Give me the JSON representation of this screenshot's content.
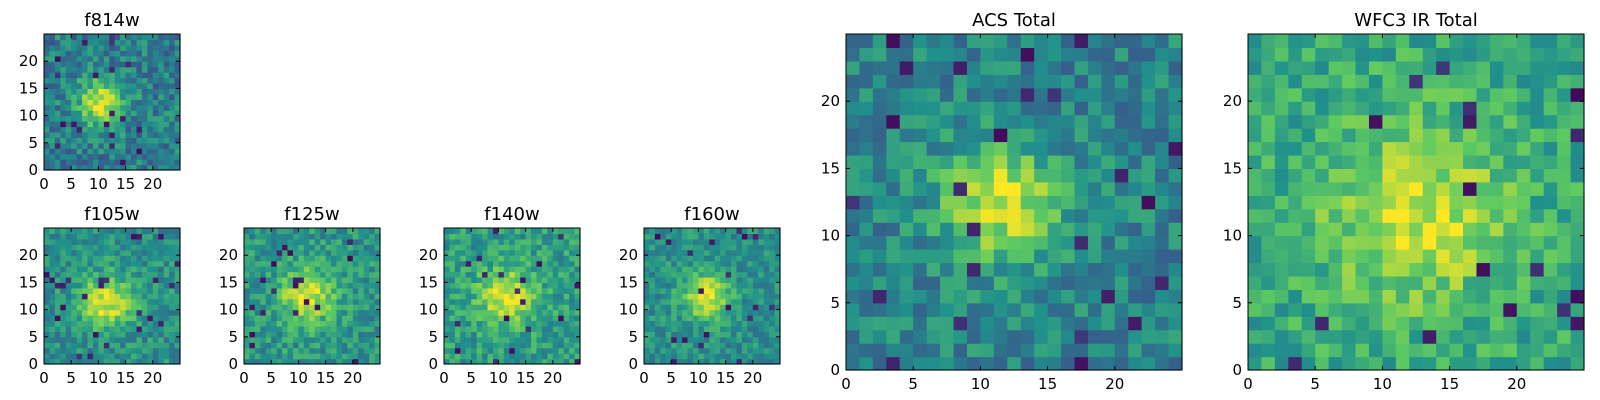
{
  "colormap": [
    "#440154",
    "#3b528b",
    "#21918c",
    "#5ec962",
    "#fde725"
  ],
  "chart_data": [
    {
      "type": "heatmap",
      "title": "f814w",
      "xlim": [
        0,
        25
      ],
      "ylim": [
        0,
        25
      ],
      "xticks": [
        0,
        5,
        10,
        15,
        20
      ],
      "yticks": [
        0,
        5,
        10,
        15,
        20
      ],
      "center": [
        10,
        12
      ],
      "peak": 0.88,
      "radius": 3.0,
      "background": 0.42,
      "noise": 0.17,
      "seed": 11
    },
    {
      "type": "heatmap",
      "title": "f105w",
      "xlim": [
        0,
        25
      ],
      "ylim": [
        0,
        25
      ],
      "xticks": [
        0,
        5,
        10,
        15,
        20
      ],
      "yticks": [
        0,
        5,
        10,
        15,
        20
      ],
      "center": [
        11,
        11
      ],
      "peak": 0.92,
      "radius": 3.4,
      "background": 0.5,
      "noise": 0.14,
      "seed": 23
    },
    {
      "type": "heatmap",
      "title": "f125w",
      "xlim": [
        0,
        25
      ],
      "ylim": [
        0,
        25
      ],
      "xticks": [
        0,
        5,
        10,
        15,
        20
      ],
      "yticks": [
        0,
        5,
        10,
        15,
        20
      ],
      "center": [
        11,
        12
      ],
      "peak": 0.88,
      "radius": 3.6,
      "background": 0.52,
      "noise": 0.15,
      "seed": 37
    },
    {
      "type": "heatmap",
      "title": "f140w",
      "xlim": [
        0,
        25
      ],
      "ylim": [
        0,
        25
      ],
      "xticks": [
        0,
        5,
        10,
        15,
        20
      ],
      "yticks": [
        0,
        5,
        10,
        15,
        20
      ],
      "center": [
        11,
        12
      ],
      "peak": 0.9,
      "radius": 3.6,
      "background": 0.55,
      "noise": 0.15,
      "seed": 41
    },
    {
      "type": "heatmap",
      "title": "f160w",
      "xlim": [
        0,
        25
      ],
      "ylim": [
        0,
        25
      ],
      "xticks": [
        0,
        5,
        10,
        15,
        20
      ],
      "yticks": [
        0,
        5,
        10,
        15,
        20
      ],
      "center": [
        11,
        12
      ],
      "peak": 0.95,
      "radius": 3.0,
      "background": 0.5,
      "noise": 0.13,
      "seed": 53
    },
    {
      "type": "heatmap",
      "title": "ACS Total",
      "xlim": [
        0,
        25
      ],
      "ylim": [
        0,
        25
      ],
      "xticks": [
        0,
        5,
        10,
        15,
        20
      ],
      "yticks": [
        0,
        5,
        10,
        15,
        20
      ],
      "center": [
        11,
        12
      ],
      "peak": 0.88,
      "radius": 3.2,
      "background": 0.45,
      "noise": 0.15,
      "seed": 67
    },
    {
      "type": "heatmap",
      "title": "WFC3 IR Total",
      "xlim": [
        0,
        25
      ],
      "ylim": [
        0,
        25
      ],
      "xticks": [
        0,
        5,
        10,
        15,
        20
      ],
      "yticks": [
        0,
        5,
        10,
        15,
        20
      ],
      "center": [
        12,
        11
      ],
      "peak": 0.85,
      "radius": 4.5,
      "background": 0.6,
      "noise": 0.15,
      "seed": 79
    }
  ]
}
